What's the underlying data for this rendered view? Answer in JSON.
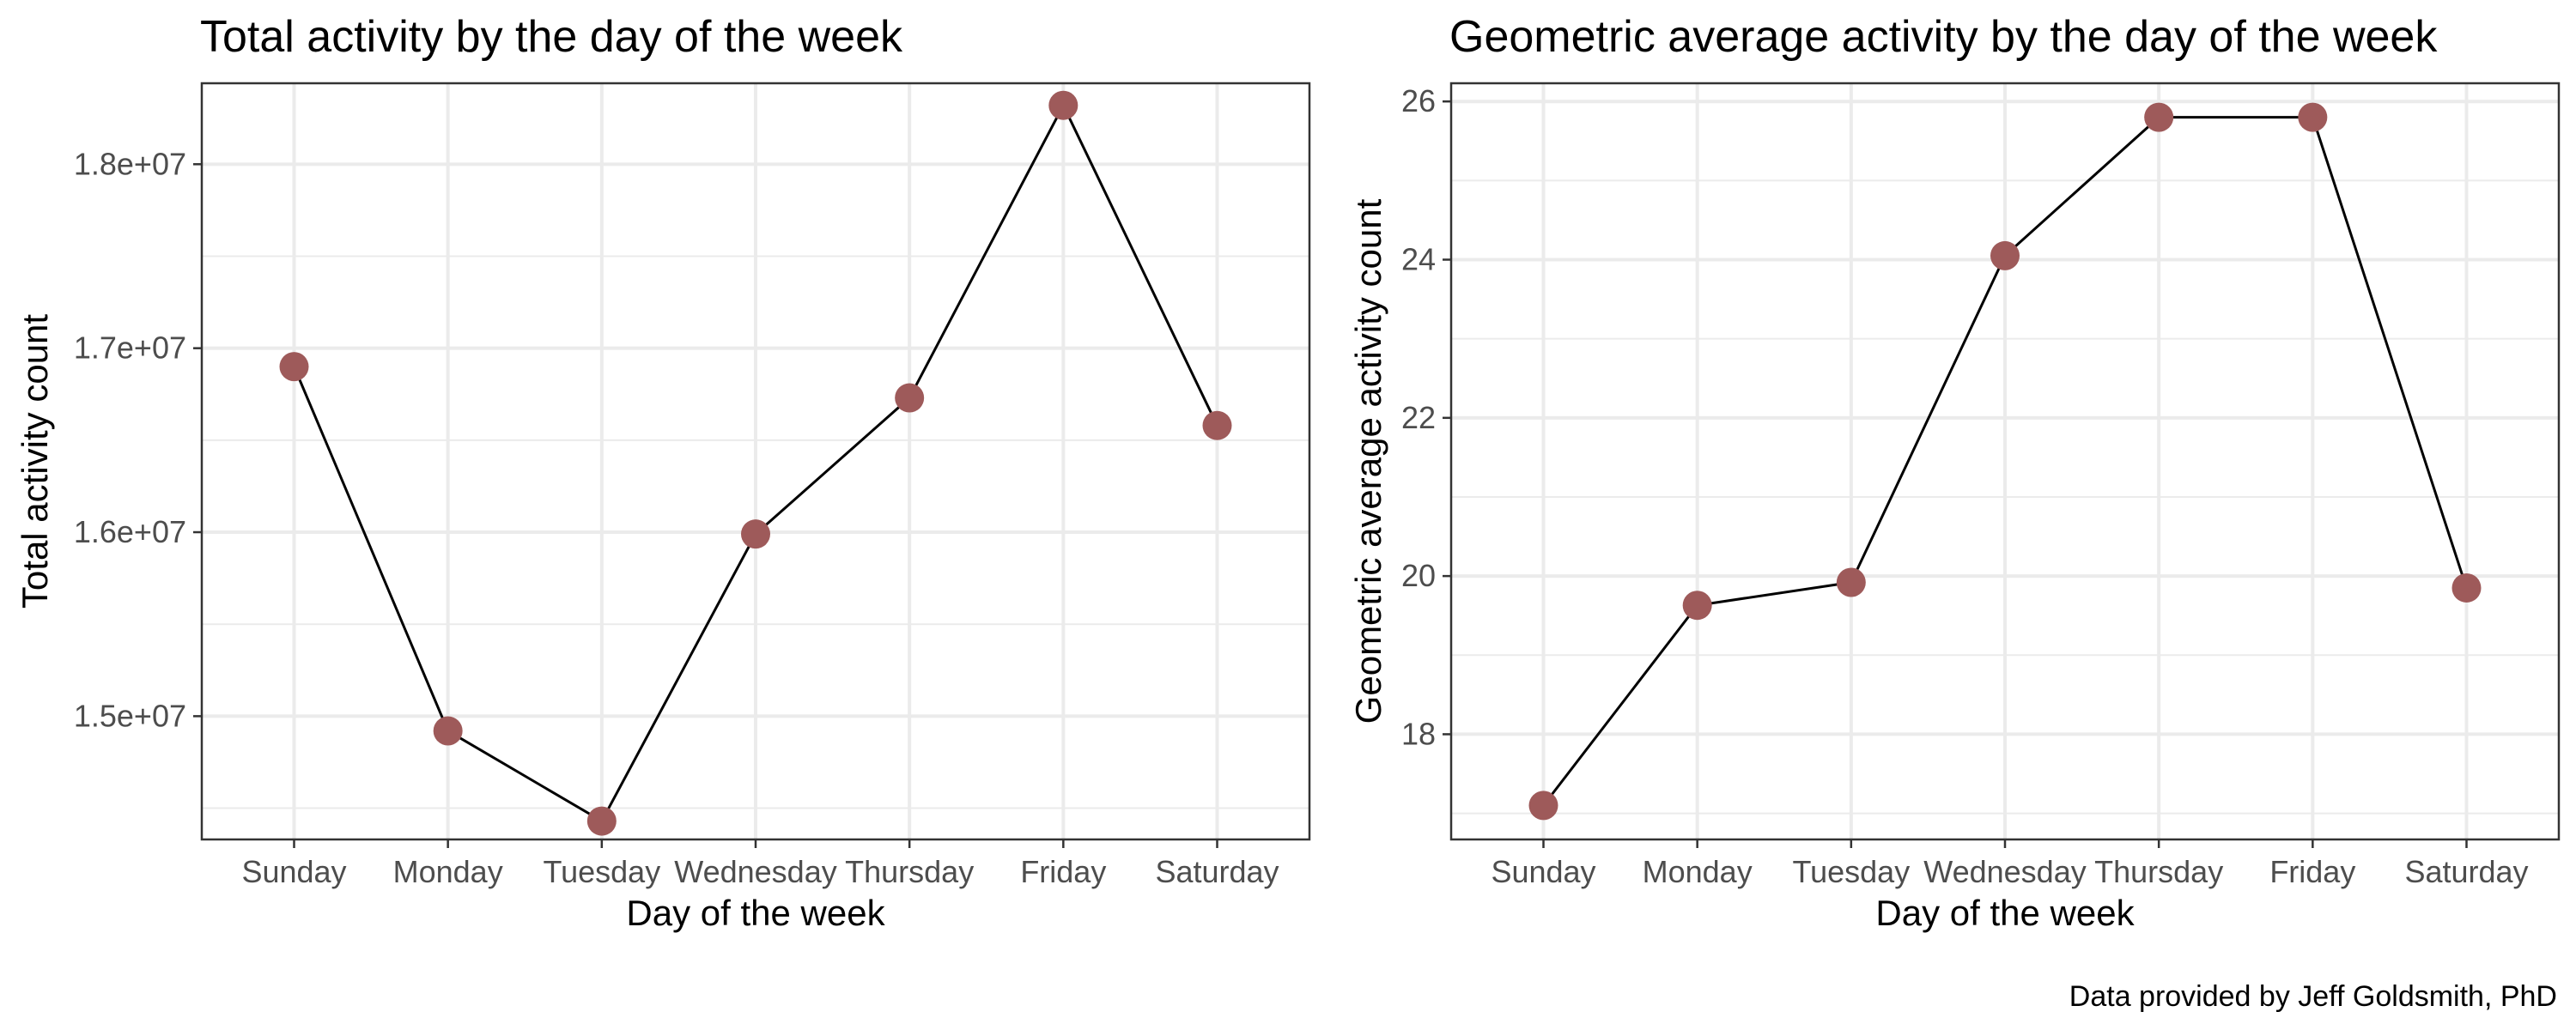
{
  "caption": "Data provided by Jeff Goldsmith, PhD",
  "colors": {
    "point": "#9e5a5a",
    "line": "#000000",
    "grid": "#ebebeb",
    "border": "#333333"
  },
  "chart_data": [
    {
      "type": "line",
      "title": "Total activity by the day of the week",
      "xlabel": "Day of the week",
      "ylabel": "Total activity count",
      "categories": [
        "Sunday",
        "Monday",
        "Tuesday",
        "Wednesday",
        "Thursday",
        "Friday",
        "Saturday"
      ],
      "values": [
        16900000,
        14920000,
        14430000,
        15990000,
        16730000,
        18320000,
        16580000
      ],
      "ylim": [
        14330000,
        18440000
      ],
      "yticks": [
        15000000,
        16000000,
        17000000,
        18000000
      ],
      "ytick_labels": [
        "1.5e+07",
        "1.6e+07",
        "1.7e+07",
        "1.8e+07"
      ],
      "grid": true,
      "markers": true
    },
    {
      "type": "line",
      "title": "Geometric average activity by the day of the week",
      "xlabel": "Day of the week",
      "ylabel": "Geometric average activity count",
      "categories": [
        "Sunday",
        "Monday",
        "Tuesday",
        "Wednesday",
        "Thursday",
        "Friday",
        "Saturday"
      ],
      "values": [
        17.1,
        19.63,
        19.92,
        24.05,
        25.8,
        25.8,
        19.85
      ],
      "ylim": [
        16.67,
        26.23
      ],
      "yticks": [
        18,
        20,
        22,
        24,
        26
      ],
      "ytick_labels": [
        "18",
        "20",
        "22",
        "24",
        "26"
      ],
      "grid": true,
      "markers": true
    }
  ]
}
